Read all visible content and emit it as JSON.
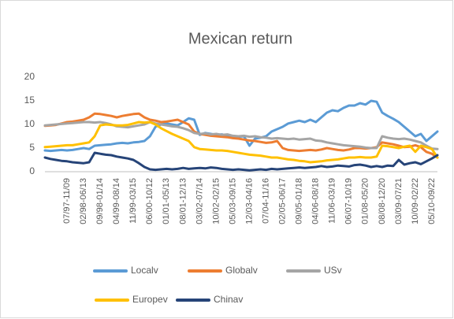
{
  "chart_data": {
    "type": "line",
    "title": "Mexican return",
    "categories": [
      null,
      null,
      null,
      null,
      "07/97-11/09",
      null,
      null,
      "02/98-06/13",
      null,
      null,
      "09/98-01/14",
      null,
      null,
      "04/99-08/14",
      null,
      null,
      "11/99-03/15",
      null,
      null,
      "06/00-10/12",
      null,
      null,
      "01/01-05/13",
      null,
      null,
      "08/01-12/13",
      null,
      null,
      "03/02-07/14",
      null,
      null,
      "10/02-02/15",
      null,
      null,
      "05/03-09/15",
      null,
      null,
      "12/03-04/16",
      null,
      null,
      "07/04-11/16",
      null,
      null,
      "02/05-06/17",
      null,
      null,
      "09/05-01/18",
      null,
      null,
      "04/06-08/18",
      null,
      null,
      "11/06-03/19",
      null,
      null,
      "06/07-10/19",
      null,
      null,
      "01/08-05/20",
      null,
      null,
      "08/08-12/20",
      null,
      null,
      "03/09-07/21",
      null,
      null,
      "10/09-02/22",
      null,
      null,
      "05/10-09/22",
      null
    ],
    "series": [
      {
        "name": "Localv",
        "color": "#5b9bd5",
        "values": [
          4.5,
          4.4,
          4.5,
          4.6,
          4.5,
          4.6,
          4.8,
          5,
          4.8,
          5.5,
          5.6,
          5.7,
          5.8,
          6,
          6.1,
          6,
          6.2,
          6.3,
          6.5,
          7.5,
          9.5,
          10,
          10.2,
          10,
          9.8,
          10.5,
          11.3,
          11,
          7.8,
          8.2,
          8,
          7.8,
          7.9,
          7.6,
          7.5,
          7.4,
          7.5,
          5.5,
          7,
          7.2,
          7.5,
          8.5,
          9,
          9.5,
          10.2,
          10.5,
          10.8,
          10.5,
          11,
          10.5,
          11.5,
          12.5,
          13,
          12.8,
          13.5,
          14,
          14,
          14.5,
          14.2,
          15,
          14.8,
          12.5,
          11.8,
          11.2,
          10.5,
          9.5,
          8.5,
          7.5,
          8,
          6.5,
          7.5,
          8.5
        ]
      },
      {
        "name": "Globalv",
        "color": "#ed7d31",
        "values": [
          9.7,
          9.8,
          9.9,
          10.2,
          10.5,
          10.6,
          10.8,
          11,
          11.5,
          12.3,
          12.2,
          12,
          11.8,
          11.5,
          11.8,
          12,
          12.2,
          12.3,
          11.5,
          11,
          10.8,
          10.5,
          10.6,
          10.8,
          11,
          10.5,
          10,
          8.5,
          8,
          7.8,
          7.6,
          7.5,
          7.4,
          7.3,
          7.1,
          7,
          6.8,
          6.6,
          6.5,
          6.3,
          6.1,
          6.2,
          6.5,
          5,
          4.6,
          4.5,
          4.4,
          4.5,
          4.6,
          4.5,
          4.7,
          5,
          4.8,
          4.6,
          4.5,
          4.7,
          5,
          5,
          4.9,
          5,
          5.2,
          6.2,
          6,
          5.8,
          5.5,
          5.2,
          5.3,
          5.6,
          5.2,
          4.2,
          3.8,
          3
        ]
      },
      {
        "name": "USv",
        "color": "#a5a5a5",
        "values": [
          9.8,
          9.9,
          10,
          10.1,
          10.2,
          10.3,
          10.4,
          10.5,
          10.5,
          10.4,
          10.5,
          10.3,
          10,
          9.6,
          9.5,
          9.4,
          9.6,
          9.8,
          10,
          10.5,
          10.2,
          10,
          9.8,
          9.6,
          9.5,
          9.2,
          8.8,
          8.2,
          8,
          8.1,
          7.9,
          8,
          7.8,
          7.9,
          7.6,
          7.5,
          7.6,
          7.4,
          7.5,
          7.3,
          7.2,
          7,
          7.1,
          7,
          6.9,
          7,
          6.8,
          6.9,
          7,
          6.6,
          6.5,
          6.2,
          6,
          5.8,
          5.6,
          5.5,
          5.4,
          5.3,
          5.1,
          5,
          5,
          7.5,
          7.2,
          7,
          6.9,
          7,
          6.8,
          6.5,
          6.2,
          5.5,
          4.9,
          4.8
        ]
      },
      {
        "name": "Europev",
        "color": "#ffc000",
        "values": [
          5.2,
          5.3,
          5.4,
          5.5,
          5.6,
          5.6,
          5.8,
          6,
          6.2,
          7.5,
          9.8,
          10,
          9.9,
          9.8,
          9.8,
          9.9,
          10.2,
          10.5,
          10.4,
          10.5,
          10,
          9.2,
          8.6,
          8,
          7.5,
          7,
          6.5,
          5.2,
          4.8,
          4.7,
          4.6,
          4.5,
          4.5,
          4.4,
          4.2,
          4,
          3.8,
          3.6,
          3.5,
          3.4,
          3.2,
          3,
          3,
          2.8,
          2.6,
          2.5,
          2.3,
          2.2,
          2,
          2.1,
          2.2,
          2.4,
          2.5,
          2.6,
          2.8,
          3,
          3,
          3.1,
          3,
          3,
          3.2,
          5.5,
          5.4,
          5.2,
          5,
          5.3,
          5.5,
          4.2,
          5.5,
          5.2,
          4.8,
          3
        ]
      },
      {
        "name": "Chinav",
        "color": "#264478",
        "values": [
          3,
          2.7,
          2.5,
          2.3,
          2.2,
          2,
          1.9,
          1.8,
          2,
          4,
          3.8,
          3.6,
          3.5,
          3.2,
          3,
          2.8,
          2.5,
          1.8,
          1,
          0.5,
          0.4,
          0.5,
          0.6,
          0.5,
          0.6,
          0.8,
          0.6,
          0.7,
          0.8,
          0.7,
          0.9,
          0.8,
          0.6,
          0.5,
          0.4,
          0.5,
          0.4,
          0.3,
          0.4,
          0.5,
          0.4,
          0.6,
          0.5,
          0.6,
          0.7,
          0.8,
          0.9,
          0.8,
          0.9,
          1,
          1.2,
          1,
          1.1,
          1.3,
          1.2,
          1.1,
          1.4,
          1.5,
          1.3,
          1,
          1.2,
          1,
          1.3,
          1.2,
          2.5,
          1.5,
          1.8,
          2,
          1.6,
          2.2,
          2.8,
          3.5
        ]
      }
    ],
    "ylim": [
      0,
      20
    ],
    "yticks": [
      0,
      5,
      10,
      15,
      20
    ],
    "grid": false,
    "legend": "bottom"
  }
}
